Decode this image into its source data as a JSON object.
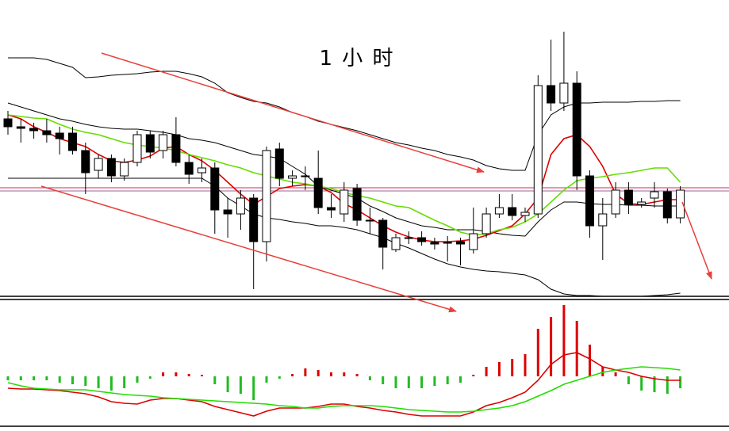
{
  "chart_data": [
    {
      "type": "candlestick",
      "title": "1 小 时",
      "open": [
        225,
        215,
        213,
        210,
        207,
        207,
        185,
        160,
        175,
        153,
        170,
        205,
        185,
        205,
        170,
        157,
        163,
        110,
        105,
        125,
        70,
        187,
        150,
        152,
        150,
        113,
        105,
        137,
        97,
        97,
        60,
        75,
        75,
        69,
        69,
        70,
        60,
        80,
        105,
        113,
        103,
        105,
        267,
        245,
        270,
        153,
        90,
        105,
        135,
        117,
        125,
        133,
        100
      ],
      "high": [
        235,
        225,
        220,
        225,
        215,
        215,
        195,
        180,
        180,
        175,
        210,
        210,
        210,
        227,
        180,
        175,
        170,
        125,
        135,
        130,
        190,
        195,
        160,
        165,
        185,
        130,
        145,
        143,
        113,
        100,
        80,
        83,
        83,
        75,
        77,
        75,
        113,
        113,
        130,
        130,
        113,
        280,
        325,
        335,
        285,
        160,
        125,
        145,
        145,
        125,
        145,
        137,
        140
      ],
      "low": [
        205,
        195,
        200,
        195,
        180,
        180,
        130,
        150,
        145,
        147,
        165,
        175,
        175,
        165,
        143,
        145,
        80,
        75,
        85,
        10,
        45,
        140,
        140,
        135,
        105,
        100,
        95,
        90,
        80,
        35,
        57,
        67,
        65,
        60,
        45,
        40,
        55,
        75,
        100,
        97,
        95,
        100,
        235,
        235,
        135,
        75,
        47,
        100,
        105,
        113,
        113,
        93,
        93
      ],
      "close": [
        215,
        213,
        210,
        205,
        200,
        185,
        157,
        175,
        153,
        170,
        205,
        183,
        205,
        170,
        155,
        163,
        110,
        105,
        125,
        70,
        185,
        150,
        153,
        153,
        113,
        110,
        135,
        97,
        97,
        63,
        75,
        75,
        70,
        67,
        69,
        67,
        80,
        105,
        113,
        103,
        107,
        267,
        245,
        270,
        153,
        90,
        105,
        135,
        117,
        120,
        133,
        100,
        135
      ],
      "up_color": "#ffffff",
      "down_color": "#000000",
      "ylim": [
        0,
        375
      ],
      "overlays": [
        {
          "color": "#000000",
          "values": [
            302,
            302,
            302,
            300,
            295,
            290,
            277,
            278,
            280,
            281,
            282,
            284,
            285,
            285,
            282,
            278,
            270,
            258,
            252,
            247,
            245,
            240,
            233,
            228,
            222,
            218,
            214,
            210,
            205,
            200,
            195,
            192,
            188,
            185,
            180,
            177,
            173,
            166,
            162,
            160,
            160,
            205,
            230,
            240,
            245,
            245,
            246,
            246,
            246,
            247,
            247,
            248,
            248
          ]
        },
        {
          "color": "#000000",
          "values": [
            245,
            240,
            235,
            230,
            225,
            222,
            218,
            215,
            213,
            212,
            212,
            210,
            208,
            205,
            200,
            198,
            195,
            190,
            185,
            180,
            178,
            175,
            165,
            155,
            140,
            135,
            130,
            125,
            115,
            108,
            100,
            95,
            90,
            88,
            85,
            85,
            85,
            83,
            80,
            78,
            77,
            95,
            110,
            120,
            120,
            118,
            117,
            117,
            116,
            116,
            115,
            115,
            115
          ]
        },
        {
          "color": "#000000",
          "values": [
            150,
            150,
            150,
            150,
            150,
            150,
            150,
            150,
            150,
            150,
            150,
            150,
            150,
            150,
            150,
            150,
            140,
            125,
            115,
            105,
            100,
            98,
            95,
            93,
            90,
            90,
            88,
            85,
            80,
            75,
            68,
            62,
            55,
            48,
            42,
            38,
            35,
            33,
            32,
            30,
            28,
            22,
            10,
            4,
            2,
            2,
            1,
            1,
            1,
            1,
            2,
            3,
            5
          ]
        },
        {
          "color": "#dd0000",
          "values": [
            230,
            225,
            215,
            208,
            200,
            195,
            190,
            180,
            172,
            170,
            173,
            178,
            188,
            190,
            180,
            172,
            160,
            145,
            130,
            117,
            127,
            137,
            140,
            142,
            140,
            132,
            118,
            110,
            100,
            90,
            82,
            76,
            72,
            70,
            70,
            71,
            73,
            78,
            84,
            90,
            105,
            125,
            180,
            200,
            205,
            190,
            165,
            130,
            118,
            117,
            120,
            123,
            123
          ]
        },
        {
          "color": "#66dd00",
          "values": [
            230,
            228,
            226,
            225,
            218,
            212,
            208,
            205,
            200,
            195,
            192,
            190,
            188,
            185,
            180,
            176,
            172,
            167,
            163,
            157,
            153,
            149,
            145,
            143,
            140,
            137,
            132,
            128,
            125,
            120,
            115,
            113,
            105,
            97,
            90,
            82,
            78,
            80,
            85,
            88,
            95,
            105,
            120,
            135,
            147,
            150,
            152,
            155,
            157,
            160,
            163,
            163,
            145
          ]
        }
      ],
      "levels": [
        {
          "value": 138,
          "color": "#cc3344"
        },
        {
          "value": 134,
          "color": "#996699"
        }
      ]
    },
    {
      "type": "macd",
      "values": [
        -5,
        -5,
        -5,
        -5,
        -8,
        -10,
        -12,
        -15,
        -18,
        -15,
        -8,
        -3,
        5,
        5,
        3,
        2,
        -10,
        -20,
        -22,
        -30,
        -8,
        -3,
        3,
        10,
        8,
        5,
        5,
        3,
        -5,
        -10,
        -15,
        -15,
        -15,
        -12,
        -10,
        -8,
        2,
        12,
        18,
        22,
        28,
        60,
        75,
        90,
        70,
        40,
        12,
        5,
        -10,
        -18,
        -20,
        -22,
        -15
      ],
      "up_color": "#dd0000",
      "down_color": "#22bb22",
      "ylim": [
        -65,
        97
      ],
      "overlays": [
        {
          "color": "#dd0000",
          "values": [
            -15,
            -16,
            -16,
            -17,
            -18,
            -20,
            -22,
            -26,
            -32,
            -34,
            -35,
            -30,
            -28,
            -28,
            -30,
            -32,
            -38,
            -42,
            -46,
            -50,
            -44,
            -40,
            -40,
            -40,
            -38,
            -35,
            -35,
            -38,
            -40,
            -43,
            -45,
            -48,
            -50,
            -50,
            -50,
            -50,
            -45,
            -37,
            -33,
            -27,
            -20,
            -5,
            15,
            27,
            30,
            22,
            12,
            8,
            5,
            0,
            -3,
            -5,
            -5
          ]
        },
        {
          "color": "#22dd00",
          "values": [
            -8,
            -12,
            -15,
            -16,
            -17,
            -17,
            -17,
            -19,
            -21,
            -23,
            -24,
            -25,
            -27,
            -28,
            -29,
            -30,
            -31,
            -32,
            -33,
            -34,
            -35,
            -37,
            -38,
            -40,
            -40,
            -38,
            -37,
            -37,
            -37,
            -38,
            -40,
            -42,
            -43,
            -44,
            -45,
            -45,
            -44,
            -42,
            -40,
            -37,
            -32,
            -25,
            -18,
            -10,
            -5,
            0,
            5,
            8,
            10,
            12,
            11,
            10,
            8
          ]
        }
      ]
    }
  ]
}
